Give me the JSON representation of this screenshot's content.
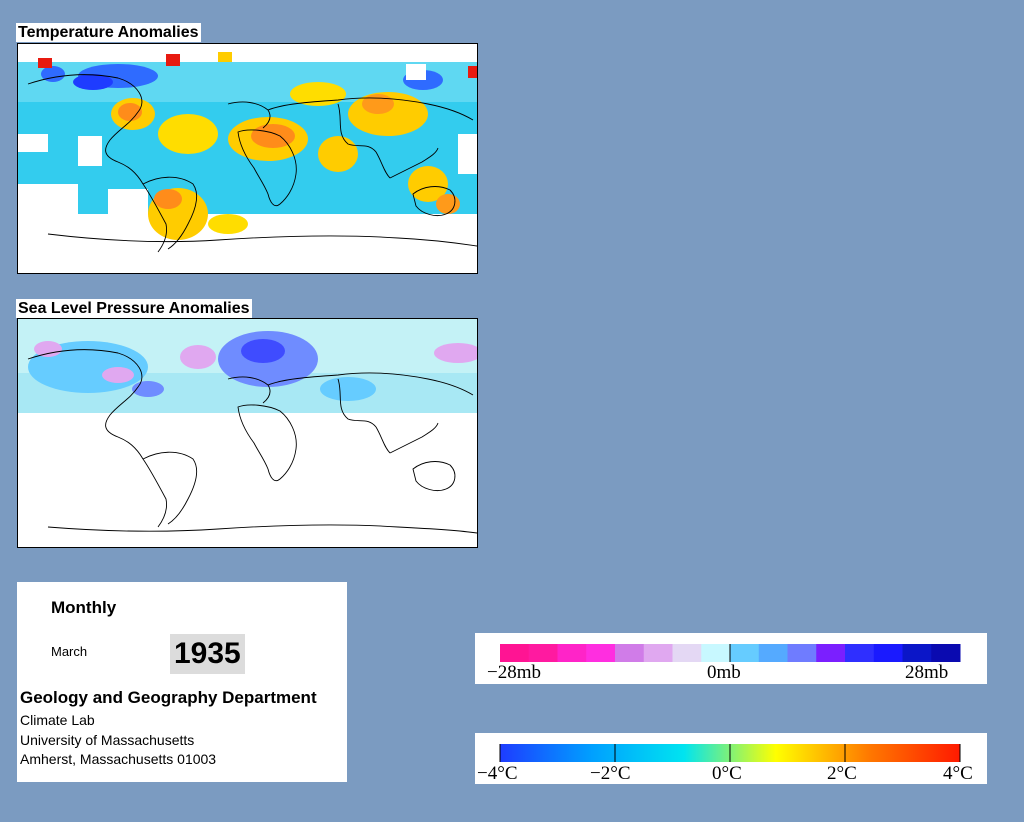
{
  "temperature_map": {
    "title": "Temperature Anomalies"
  },
  "pressure_map": {
    "title": "Sea Level Pressure Anomalies"
  },
  "info": {
    "mode": "Monthly",
    "month": "March",
    "year": "1935",
    "department": "Geology and Geography Department",
    "lab": "Climate Lab",
    "university": "University of Massachusetts",
    "address": "Amherst, Massachusetts 01003"
  },
  "pressure_legend": {
    "labels": [
      "−28mb",
      "0mb",
      "28mb"
    ],
    "colors": [
      "#ff1493",
      "#ff1aa0",
      "#ff24c8",
      "#ff2ee0",
      "#d07ce8",
      "#e0a8f0",
      "#e4d8f4",
      "#c8f8ff",
      "#66ccff",
      "#55aaff",
      "#6f7cff",
      "#7b1fff",
      "#2f2fff",
      "#1a1aff",
      "#0b16c8",
      "#0a0ab0"
    ]
  },
  "temperature_legend": {
    "labels": [
      "−4°C",
      "−2°C",
      "0°C",
      "2°C",
      "4°C"
    ],
    "colors": [
      "#1e3cff",
      "#00a0ff",
      "#00e4f0",
      "#ffff00",
      "#ff7a00",
      "#ff1a00"
    ]
  }
}
